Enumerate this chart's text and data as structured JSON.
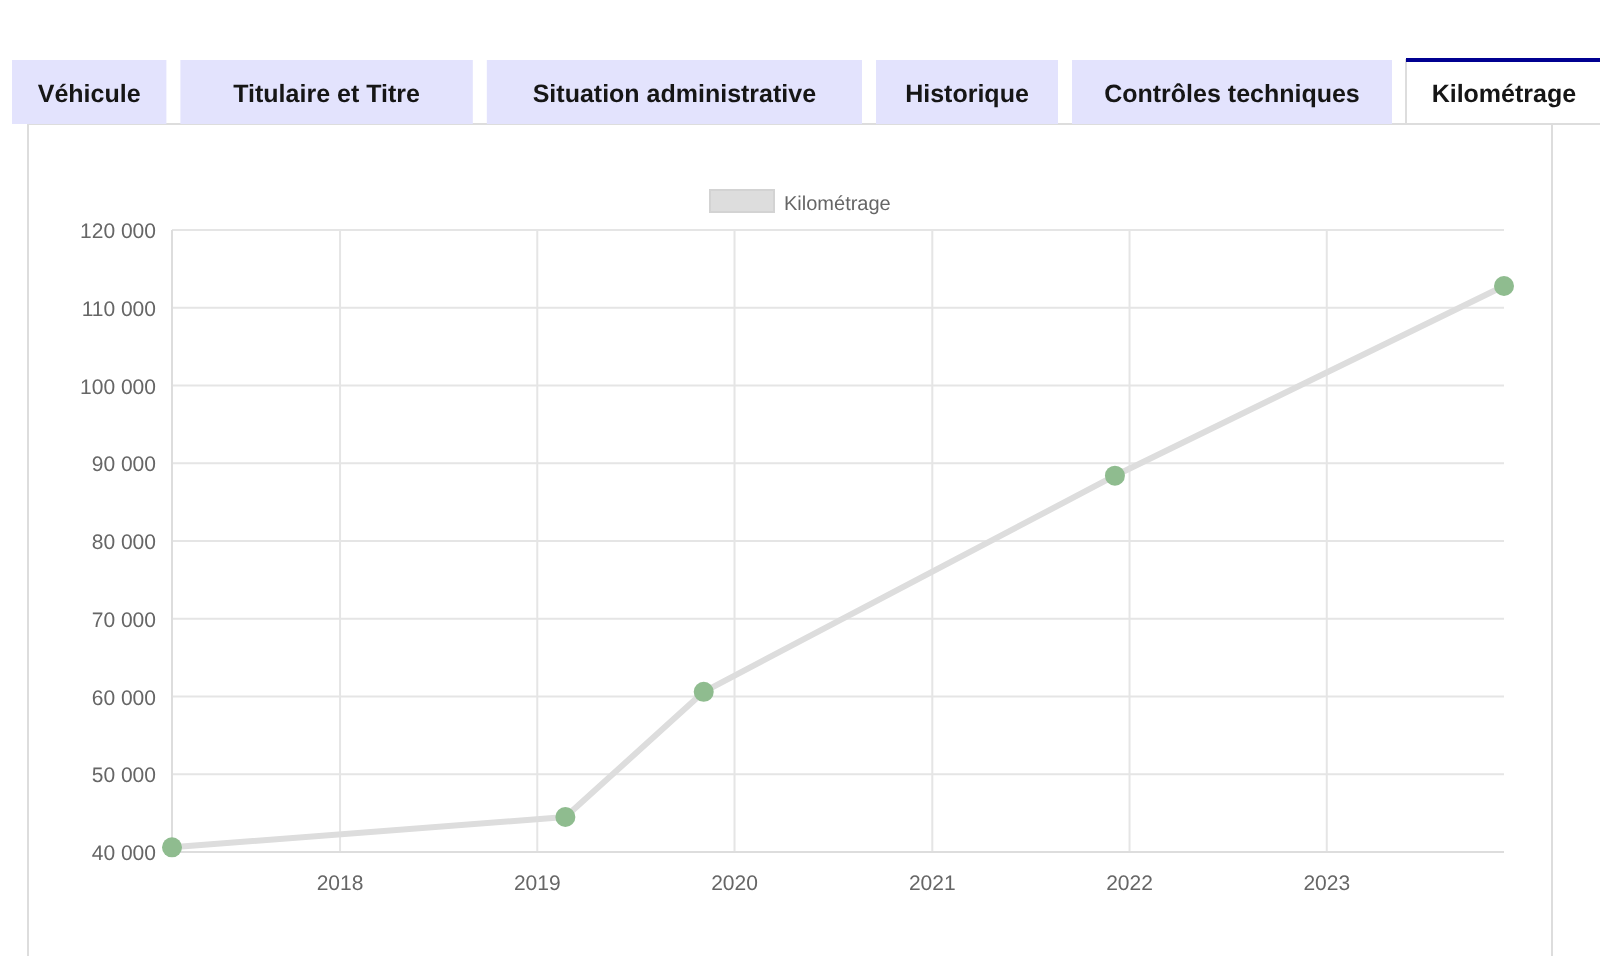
{
  "chart_data": {
    "type": "line",
    "annotations": [
      "Véhicule",
      "Titulaire et Titre",
      "Situation administrative",
      "Historique",
      "Contrôles techniques",
      "Kilométrage"
    ],
    "x": [
      "2017-02-24",
      "2019-02-22",
      "2019-11-05",
      "2021-12-05",
      "2023-11-25"
    ],
    "series": [
      {
        "name": "Kilométrage",
        "color": "#dddddd",
        "colors": [
          "#8fbc8f",
          "#8fbc8f",
          "#8fbc8f",
          "#8fbc8f",
          "#8fbc8f"
        ],
        "values": [
          40600,
          44500,
          60600,
          88400,
          112800
        ]
      }
    ],
    "xlim": [
      "2017-02-24",
      "2023-11-25"
    ],
    "xticks": [
      {
        "value": "2018-01-01",
        "label": "2018"
      },
      {
        "value": "2019-01-01",
        "label": "2019"
      },
      {
        "value": "2020-01-01",
        "label": "2020"
      },
      {
        "value": "2021-01-01",
        "label": "2021"
      },
      {
        "value": "2022-01-01",
        "label": "2022"
      },
      {
        "value": "2023-01-01",
        "label": "2023"
      }
    ],
    "ylim": [
      40000,
      120000
    ],
    "yticks": [
      {
        "value": 40000,
        "label": "40 000"
      },
      {
        "value": 50000,
        "label": "50 000"
      },
      {
        "value": 60000,
        "label": "60 000"
      },
      {
        "value": 70000,
        "label": "70 000"
      },
      {
        "value": 80000,
        "label": "80 000"
      },
      {
        "value": 90000,
        "label": "90 000"
      },
      {
        "value": 100000,
        "label": "100 000"
      },
      {
        "value": 110000,
        "label": "110 000"
      },
      {
        "value": 120000,
        "label": "120 000"
      }
    ],
    "grid": true,
    "legend": "top",
    "marker": "circle",
    "line_style": "solid"
  }
}
